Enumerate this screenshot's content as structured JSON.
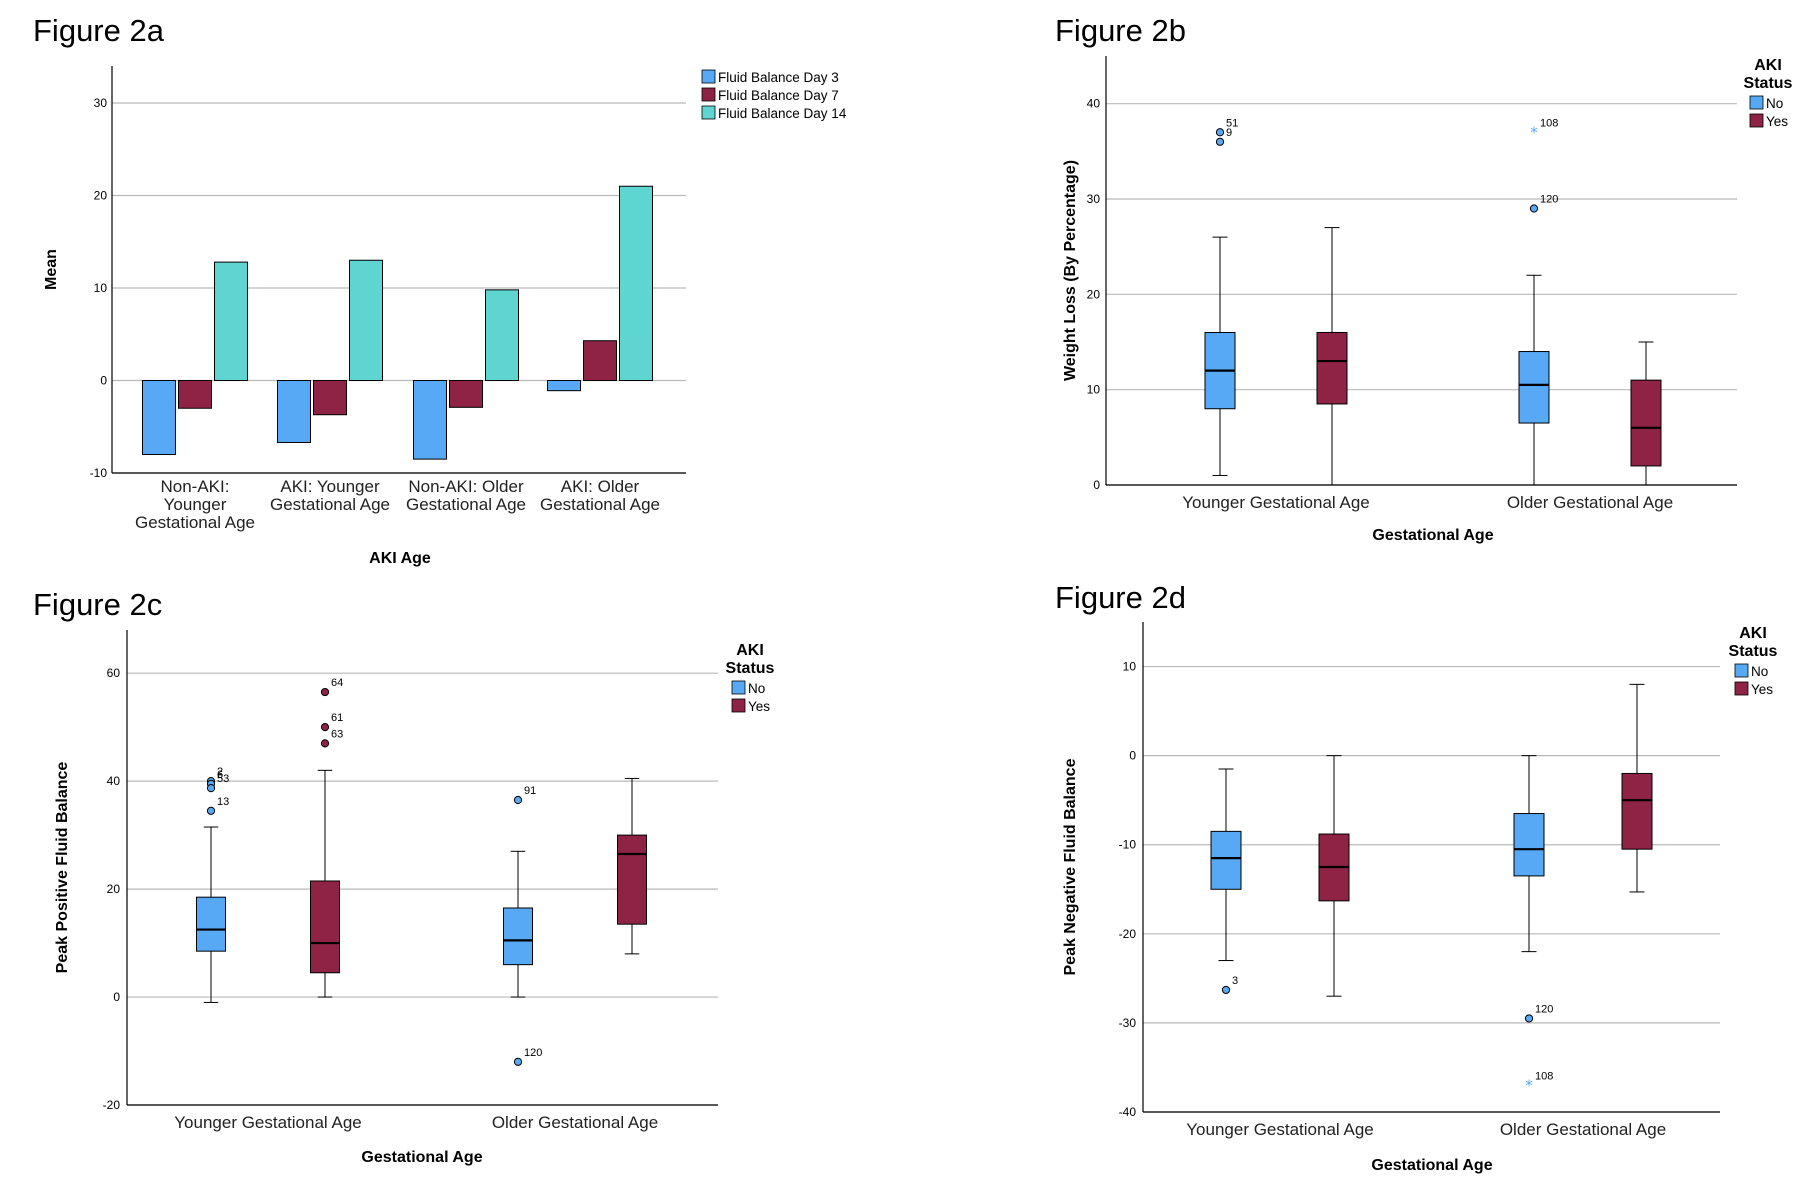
{
  "colors": {
    "blue": "#58A9F5",
    "maroon": "#8E2345",
    "teal": "#5FD5D2"
  },
  "chart_data": [
    {
      "id": "fig2a",
      "type": "bar",
      "title": "Figure 2a",
      "xlabel": "AKI Age",
      "ylabel": "Mean",
      "ylim": [
        -10,
        34
      ],
      "yticks": [
        -10,
        0,
        10,
        20,
        30
      ],
      "grid": true,
      "legend": "top-right",
      "categories": [
        [
          "Non-AKI:",
          "Younger",
          "Gestational Age"
        ],
        [
          "AKI: Younger",
          "Gestational Age"
        ],
        [
          "Non-AKI: Older",
          "Gestational Age"
        ],
        [
          "AKI: Older",
          "Gestational Age"
        ]
      ],
      "series": [
        {
          "name": "Fluid Balance Day 3",
          "color": "#58A9F5",
          "values": [
            -8.0,
            -6.7,
            -8.5,
            -1.1
          ]
        },
        {
          "name": "Fluid Balance Day 7",
          "color": "#8E2345",
          "values": [
            -3.0,
            -3.7,
            -2.9,
            4.3
          ]
        },
        {
          "name": "Fluid Balance Day 14",
          "color": "#5FD5D2",
          "values": [
            12.8,
            13.0,
            9.8,
            21.0
          ]
        }
      ]
    },
    {
      "id": "fig2b",
      "type": "box",
      "title": "Figure 2b",
      "xlabel": "Gestational Age",
      "ylabel": "Weight Loss (By Percentage)",
      "ylim": [
        0,
        45
      ],
      "yticks": [
        0,
        10,
        20,
        30,
        40
      ],
      "grid": true,
      "legend": "top-right",
      "legend_title": [
        "AKI",
        "Status"
      ],
      "groups": [
        "Younger Gestational Age",
        "Older Gestational Age"
      ],
      "series": [
        {
          "name": "No",
          "color": "#58A9F5",
          "boxes": [
            {
              "min": 1,
              "q1": 8,
              "median": 12,
              "q3": 16,
              "max": 26,
              "outliers": [
                {
                  "value": 37,
                  "label": "51",
                  "star": false
                },
                {
                  "value": 36,
                  "label": "9",
                  "star": false
                }
              ]
            },
            {
              "min": 0,
              "q1": 6.5,
              "median": 10.5,
              "q3": 14,
              "max": 22,
              "outliers": [
                {
                  "value": 37,
                  "label": "108",
                  "star": true
                },
                {
                  "value": 29,
                  "label": "120",
                  "star": false
                }
              ]
            }
          ]
        },
        {
          "name": "Yes",
          "color": "#8E2345",
          "boxes": [
            {
              "min": 0,
              "q1": 8.5,
              "median": 13,
              "q3": 16,
              "max": 27,
              "outliers": []
            },
            {
              "min": 0,
              "q1": 2,
              "median": 6,
              "q3": 11,
              "max": 15,
              "outliers": []
            }
          ]
        }
      ]
    },
    {
      "id": "fig2c",
      "type": "box",
      "title": "Figure 2c",
      "xlabel": "Gestational Age",
      "ylabel": "Peak Positive Fluid Balance",
      "ylim": [
        -20,
        68
      ],
      "yticks": [
        -20,
        0,
        20,
        40,
        60
      ],
      "grid": true,
      "legend": "top-right",
      "legend_title": [
        "AKI",
        "Status"
      ],
      "groups": [
        "Younger Gestational Age",
        "Older Gestational Age"
      ],
      "series": [
        {
          "name": "No",
          "color": "#58A9F5",
          "boxes": [
            {
              "min": -1,
              "q1": 8.5,
              "median": 12.5,
              "q3": 18.5,
              "max": 31.5,
              "outliers": [
                {
                  "value": 40,
                  "label": "2",
                  "star": false
                },
                {
                  "value": 39.5,
                  "label": "6",
                  "star": false
                },
                {
                  "value": 38.7,
                  "label": "53",
                  "star": false
                },
                {
                  "value": 34.5,
                  "label": "13",
                  "star": false
                }
              ]
            },
            {
              "min": 0,
              "q1": 6,
              "median": 10.5,
              "q3": 16.5,
              "max": 27,
              "outliers": [
                {
                  "value": 36.5,
                  "label": "91",
                  "star": false
                },
                {
                  "value": -12,
                  "label": "120",
                  "star": false
                }
              ]
            }
          ]
        },
        {
          "name": "Yes",
          "color": "#8E2345",
          "boxes": [
            {
              "min": 0,
              "q1": 4.5,
              "median": 10,
              "q3": 21.5,
              "max": 42,
              "outliers": [
                {
                  "value": 56.5,
                  "label": "64",
                  "star": false
                },
                {
                  "value": 50,
                  "label": "61",
                  "star": false
                },
                {
                  "value": 47,
                  "label": "63",
                  "star": false
                }
              ]
            },
            {
              "min": 8,
              "q1": 13.5,
              "median": 26.5,
              "q3": 30,
              "max": 40.5,
              "outliers": []
            }
          ]
        }
      ]
    },
    {
      "id": "fig2d",
      "type": "box",
      "title": "Figure 2d",
      "xlabel": "Gestational Age",
      "ylabel": "Peak Negative Fluid Balance",
      "ylim": [
        -40,
        15
      ],
      "yticks": [
        -40,
        -30,
        -20,
        -10,
        0,
        10
      ],
      "grid": true,
      "legend": "top-right",
      "legend_title": [
        "AKI",
        "Status"
      ],
      "groups": [
        "Younger Gestational Age",
        "Older Gestational Age"
      ],
      "series": [
        {
          "name": "No",
          "color": "#58A9F5",
          "boxes": [
            {
              "min": -23,
              "q1": -15,
              "median": -11.5,
              "q3": -8.5,
              "max": -1.5,
              "outliers": [
                {
                  "value": -26.3,
                  "label": "3",
                  "star": false
                }
              ]
            },
            {
              "min": -22,
              "q1": -13.5,
              "median": -10.5,
              "q3": -6.5,
              "max": 0,
              "outliers": [
                {
                  "value": -29.5,
                  "label": "120",
                  "star": false
                },
                {
                  "value": -37,
                  "label": "108",
                  "star": true
                }
              ]
            }
          ]
        },
        {
          "name": "Yes",
          "color": "#8E2345",
          "boxes": [
            {
              "min": -27,
              "q1": -16.3,
              "median": -12.5,
              "q3": -8.8,
              "max": 0,
              "outliers": []
            },
            {
              "min": -15.3,
              "q1": -10.5,
              "median": -5,
              "q3": -2,
              "max": 8,
              "outliers": []
            }
          ]
        }
      ]
    }
  ]
}
